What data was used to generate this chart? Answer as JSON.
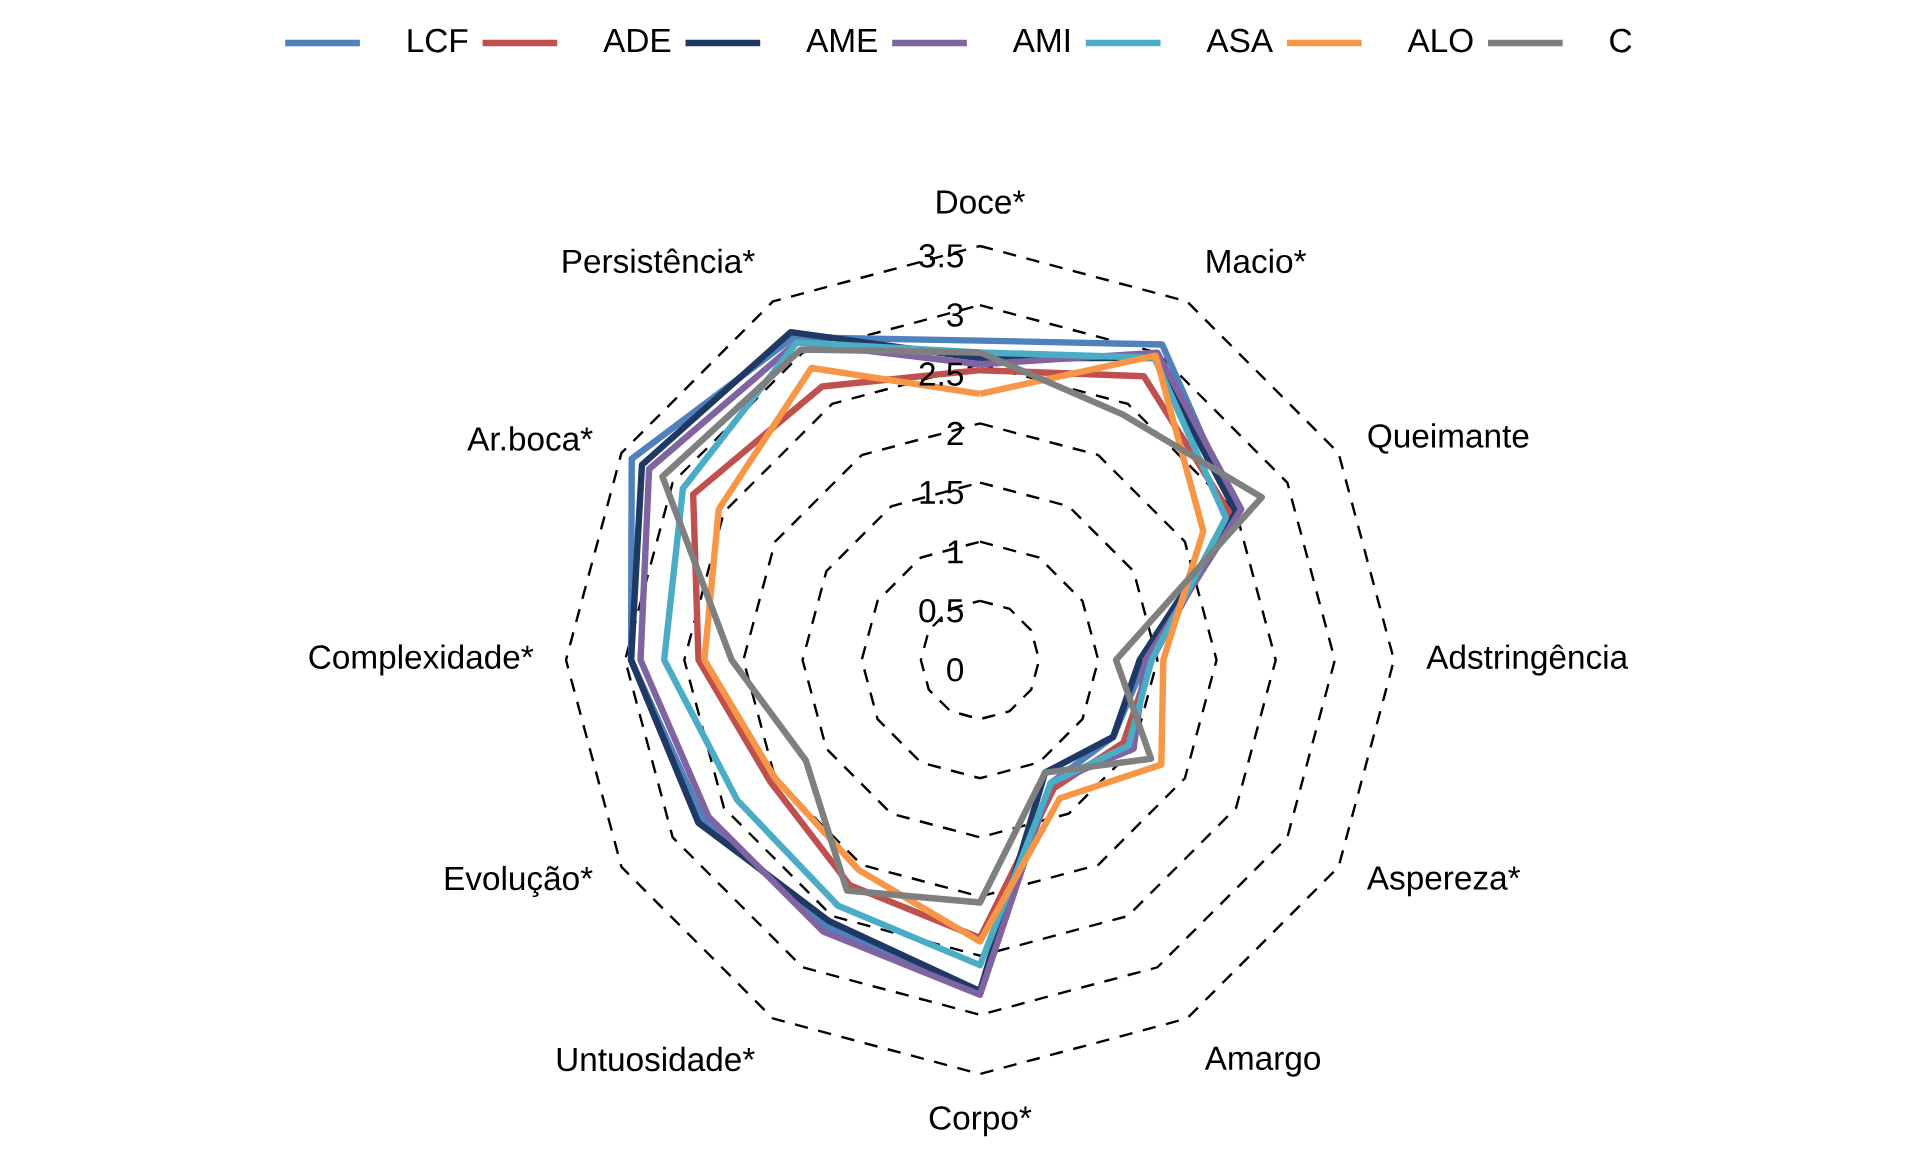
{
  "chart_data": {
    "type": "radar",
    "categories": [
      "Doce*",
      "Macio*",
      "Queimante",
      "Adstringência",
      "Aspereza*",
      "Amargo",
      "Corpo*",
      "Untuosidade*",
      "Evolução*",
      "Complexidade*",
      "Ar.boca*",
      "Persistência*"
    ],
    "series": [
      {
        "name": "LCF",
        "color": "#4f81bd",
        "values": [
          2.7,
          3.08,
          2.5,
          1.4,
          1.3,
          1.2,
          2.8,
          2.6,
          2.7,
          2.95,
          3.4,
          3.15
        ]
      },
      {
        "name": "ADE",
        "color": "#c0504d",
        "values": [
          2.45,
          2.77,
          2.45,
          1.45,
          1.4,
          1.25,
          2.35,
          2.2,
          2.05,
          2.38,
          2.8,
          2.67
        ]
      },
      {
        "name": "AME",
        "color": "#1f3864",
        "values": [
          2.55,
          2.95,
          2.5,
          1.35,
          1.3,
          1.1,
          2.8,
          2.55,
          2.75,
          2.95,
          3.3,
          3.2
        ]
      },
      {
        "name": "AMI",
        "color": "#8064a2",
        "values": [
          2.5,
          3.0,
          2.55,
          1.4,
          1.5,
          1.2,
          2.83,
          2.65,
          2.65,
          2.87,
          3.23,
          3.1
        ]
      },
      {
        "name": "ASA",
        "color": "#4bacc6",
        "values": [
          2.6,
          2.95,
          2.4,
          1.45,
          1.45,
          1.2,
          2.58,
          2.4,
          2.37,
          2.67,
          2.9,
          3.1
        ]
      },
      {
        "name": "ALO",
        "color": "#f79646",
        "values": [
          2.25,
          2.97,
          2.18,
          1.55,
          1.77,
          1.35,
          2.38,
          2.05,
          2.0,
          2.33,
          2.55,
          2.85
        ]
      },
      {
        "name": "C",
        "color": "#7f7f7f",
        "values": [
          2.6,
          2.4,
          2.75,
          1.15,
          1.67,
          1.1,
          2.05,
          2.25,
          1.7,
          2.1,
          3.1,
          3.03
        ]
      }
    ],
    "ylim": [
      0,
      3.5
    ],
    "yticks": [
      0,
      0.5,
      1,
      1.5,
      2,
      2.5,
      3,
      3.5
    ],
    "grid": true,
    "legend": "top"
  }
}
